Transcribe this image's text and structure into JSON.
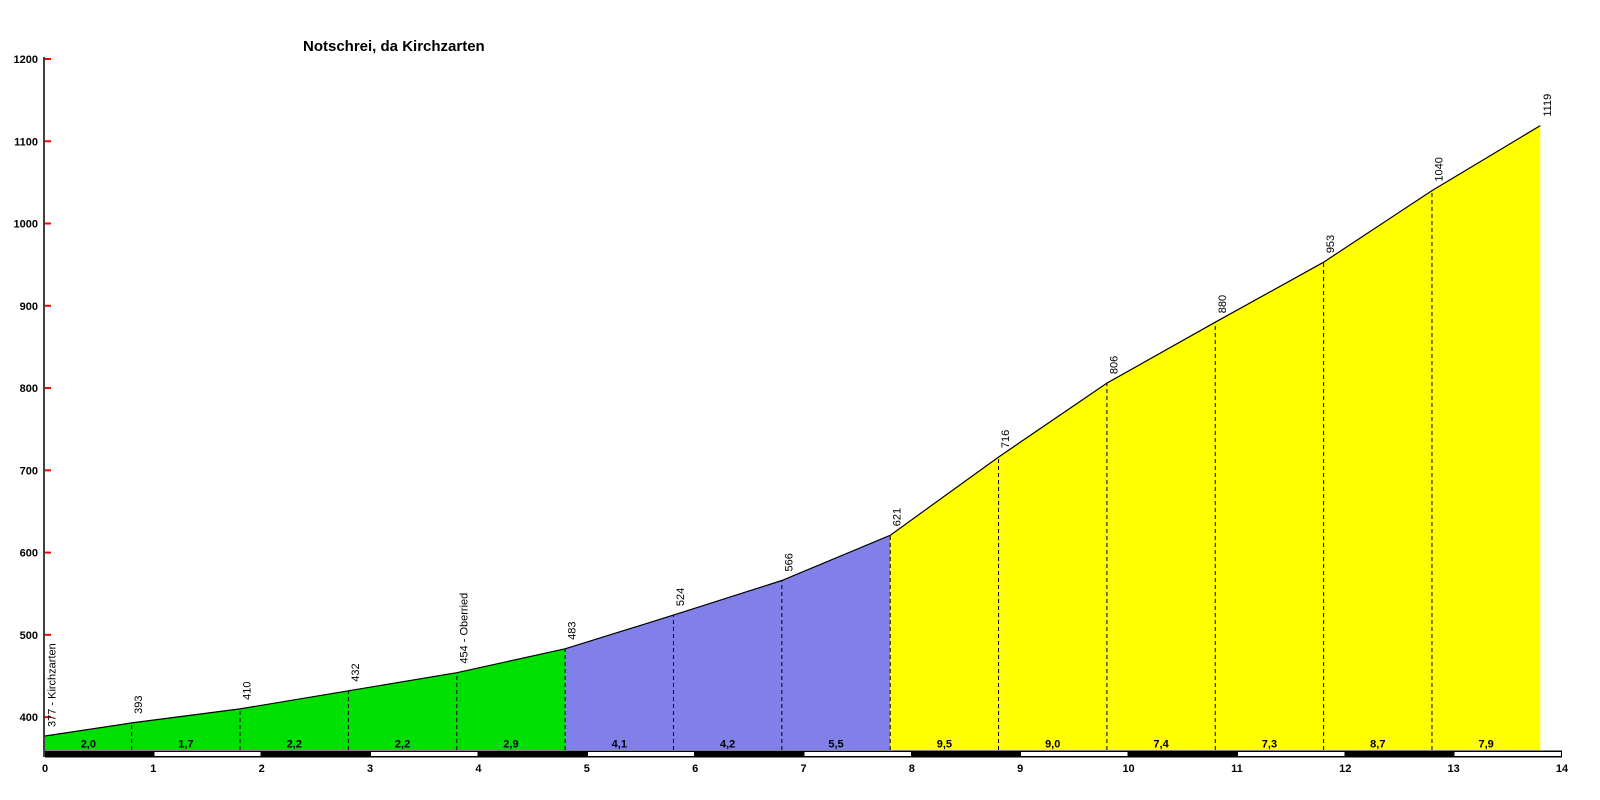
{
  "chart_data": {
    "type": "area",
    "title": "Notschrei, da Kirchzarten",
    "x_unit": "km",
    "y_unit": "m",
    "xlim": [
      0,
      14
    ],
    "ylim": [
      360,
      1200
    ],
    "x_ticks": [
      0,
      1,
      2,
      3,
      4,
      5,
      6,
      7,
      8,
      9,
      10,
      11,
      12,
      13,
      14
    ],
    "y_ticks": [
      400,
      500,
      600,
      700,
      800,
      900,
      1000,
      1100,
      1200
    ],
    "points": {
      "km": [
        0,
        0.8,
        1.8,
        2.8,
        3.8,
        4.8,
        5.8,
        6.8,
        7.8,
        8.8,
        9.8,
        10.8,
        11.8,
        12.8,
        13.8
      ],
      "elevation_m": [
        377,
        393,
        410,
        432,
        454,
        483,
        524,
        566,
        621,
        716,
        806,
        880,
        953,
        1040,
        1119
      ],
      "labels": [
        "377 - Kirchzarten",
        "393",
        "410",
        "432",
        "454 - Oberried",
        "483",
        "524",
        "566",
        "621",
        "716",
        "806",
        "880",
        "953",
        "1040",
        "1119"
      ]
    },
    "segment_gradients_percent": [
      "2,0",
      "1,7",
      "2,2",
      "2,2",
      "2,9",
      "4,1",
      "4,2",
      "5,5",
      "9,5",
      "9,0",
      "7,4",
      "7,3",
      "8,7",
      "7,9"
    ],
    "color_zones": [
      {
        "from_km": 0,
        "to_km": 4.8,
        "color": "#00e000"
      },
      {
        "from_km": 4.8,
        "to_km": 7.8,
        "color": "#8080e8"
      },
      {
        "from_km": 7.8,
        "to_km": 13.8,
        "color": "#ffff00"
      }
    ],
    "km_bar": {
      "first_block_color": "#000000",
      "alternate_block_color": "#ffffff",
      "block_length_km": 1,
      "from_km": 0,
      "to_km": 14
    },
    "styles": {
      "axis_line_color": "#000000",
      "axis_tick_color": "#ff0000",
      "profile_line_color": "#000000",
      "dashed_guide_color": "#000000",
      "label_color": "#000000"
    }
  }
}
